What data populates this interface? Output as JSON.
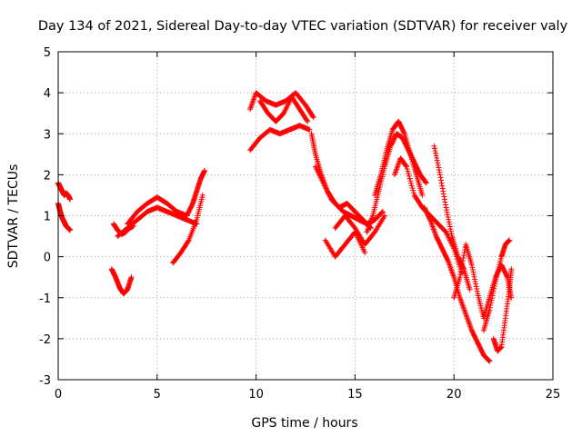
{
  "chart_data": {
    "type": "scatter",
    "title": "Day 134 of 2021, Sidereal Day-to-day VTEC variation (SDTVAR) for receiver valy",
    "xlabel": "GPS time / hours",
    "ylabel": "SDTVAR / TECUs",
    "xlim": [
      0,
      25
    ],
    "ylim": [
      -3,
      5
    ],
    "xticks": [
      "0",
      "5",
      "10",
      "15",
      "20",
      "25"
    ],
    "yticks": [
      "-3",
      "-2",
      "-1",
      "0",
      "1",
      "2",
      "3",
      "4",
      "5"
    ],
    "grid": true,
    "marker": "+",
    "color": "#ff0000",
    "series": [
      {
        "name": "SDTVAR",
        "segments": [
          {
            "x": [
              0.0,
              0.1,
              0.2,
              0.3,
              0.4,
              0.5,
              0.6
            ],
            "y": [
              1.8,
              1.7,
              1.6,
              1.5,
              1.55,
              1.5,
              1.4
            ]
          },
          {
            "x": [
              0.0,
              0.1,
              0.2,
              0.3,
              0.4,
              0.5,
              0.6
            ],
            "y": [
              1.3,
              1.1,
              0.95,
              0.85,
              0.75,
              0.7,
              0.65
            ]
          },
          {
            "x": [
              2.8,
              3.0,
              3.2,
              3.4,
              3.6,
              3.8
            ],
            "y": [
              0.8,
              0.65,
              0.55,
              0.6,
              0.7,
              0.75
            ]
          },
          {
            "x": [
              2.7,
              2.9,
              3.1,
              3.3,
              3.5,
              3.7
            ],
            "y": [
              -0.3,
              -0.5,
              -0.75,
              -0.9,
              -0.8,
              -0.5
            ]
          },
          {
            "x": [
              3.0,
              3.5,
              4.0,
              4.5,
              5.0,
              5.5,
              6.0,
              6.5,
              7.0
            ],
            "y": [
              0.5,
              0.7,
              0.9,
              1.1,
              1.2,
              1.1,
              1.0,
              0.9,
              0.8
            ]
          },
          {
            "x": [
              3.5,
              4.0,
              4.5,
              5.0,
              5.5,
              6.0,
              6.5
            ],
            "y": [
              0.8,
              1.1,
              1.3,
              1.45,
              1.3,
              1.1,
              1.0
            ]
          },
          {
            "x": [
              5.8,
              6.2,
              6.6,
              7.0,
              7.3
            ],
            "y": [
              -0.15,
              0.1,
              0.4,
              0.9,
              1.5
            ]
          },
          {
            "x": [
              6.5,
              6.8,
              7.0,
              7.2,
              7.4
            ],
            "y": [
              1.0,
              1.3,
              1.6,
              1.9,
              2.1
            ]
          },
          {
            "x": [
              9.7,
              10.0,
              10.5,
              11.0,
              11.5,
              12.0,
              12.5,
              12.9
            ],
            "y": [
              3.6,
              4.0,
              3.8,
              3.7,
              3.8,
              4.0,
              3.7,
              3.4
            ]
          },
          {
            "x": [
              9.7,
              10.2,
              10.7,
              11.2,
              11.7,
              12.2,
              12.7
            ],
            "y": [
              2.6,
              2.9,
              3.1,
              3.0,
              3.1,
              3.2,
              3.1
            ]
          },
          {
            "x": [
              10.2,
              10.6,
              11.0,
              11.4,
              11.8,
              12.2,
              12.6
            ],
            "y": [
              3.8,
              3.5,
              3.3,
              3.5,
              3.9,
              3.6,
              3.3
            ]
          },
          {
            "x": [
              12.8,
              13.0,
              13.3,
              13.6,
              14.0,
              14.4,
              14.8,
              15.2,
              15.6,
              16.0,
              16.4
            ],
            "y": [
              3.0,
              2.5,
              2.0,
              1.6,
              1.3,
              1.1,
              1.0,
              0.9,
              0.8,
              0.9,
              1.1
            ]
          },
          {
            "x": [
              13.0,
              13.4,
              13.8,
              14.2,
              14.6,
              15.0,
              15.4,
              15.8
            ],
            "y": [
              2.2,
              1.8,
              1.4,
              1.2,
              1.3,
              1.1,
              0.9,
              0.7
            ]
          },
          {
            "x": [
              13.5,
              14.0,
              14.5,
              15.0,
              15.5
            ],
            "y": [
              0.4,
              0.0,
              0.3,
              0.6,
              0.1
            ]
          },
          {
            "x": [
              14.0,
              14.5,
              15.0,
              15.5,
              16.0,
              16.5
            ],
            "y": [
              0.7,
              1.0,
              0.7,
              0.3,
              0.6,
              1.0
            ]
          },
          {
            "x": [
              15.6,
              15.9,
              16.2,
              16.5,
              16.8,
              17.1,
              17.4,
              17.7,
              18.0,
              18.3,
              18.6
            ],
            "y": [
              0.6,
              1.0,
              1.6,
              2.2,
              2.7,
              3.0,
              2.9,
              2.6,
              2.3,
              2.0,
              1.8
            ]
          },
          {
            "x": [
              16.0,
              16.3,
              16.6,
              16.9,
              17.2,
              17.5,
              17.8,
              18.1,
              18.4
            ],
            "y": [
              1.5,
              2.0,
              2.6,
              3.1,
              3.3,
              3.0,
              2.5,
              2.0,
              1.5
            ]
          },
          {
            "x": [
              17.0,
              17.3,
              17.6,
              18.0,
              18.4,
              18.8,
              19.2,
              19.6,
              20.0,
              20.4
            ],
            "y": [
              2.0,
              2.4,
              2.2,
              1.5,
              1.2,
              1.0,
              0.8,
              0.6,
              0.2,
              -0.4
            ]
          },
          {
            "x": [
              18.5,
              18.8,
              19.1,
              19.4,
              19.7,
              20.0,
              20.3,
              20.6,
              20.9,
              21.2,
              21.5,
              21.8
            ],
            "y": [
              1.2,
              0.9,
              0.5,
              0.2,
              -0.1,
              -0.5,
              -1.0,
              -1.4,
              -1.8,
              -2.1,
              -2.4,
              -2.55
            ]
          },
          {
            "x": [
              19.0,
              19.3,
              19.6,
              19.9,
              20.2,
              20.5,
              20.8
            ],
            "y": [
              2.7,
              2.0,
              1.2,
              0.5,
              0.0,
              -0.3,
              -0.8
            ]
          },
          {
            "x": [
              20.0,
              20.3,
              20.6,
              20.9,
              21.2,
              21.5,
              21.8,
              22.1,
              22.4,
              22.7,
              22.9
            ],
            "y": [
              -1.0,
              -0.5,
              0.3,
              -0.2,
              -0.9,
              -1.5,
              -1.0,
              -0.5,
              -0.2,
              -0.5,
              -1.0
            ]
          },
          {
            "x": [
              21.5,
              21.8,
              22.1,
              22.4,
              22.6,
              22.8
            ],
            "y": [
              -1.8,
              -1.3,
              -0.6,
              0.0,
              0.3,
              0.4
            ]
          },
          {
            "x": [
              22.0,
              22.2,
              22.4,
              22.6,
              22.8,
              22.9
            ],
            "y": [
              -2.0,
              -2.3,
              -2.2,
              -1.5,
              -0.8,
              -0.3
            ]
          }
        ]
      }
    ]
  }
}
